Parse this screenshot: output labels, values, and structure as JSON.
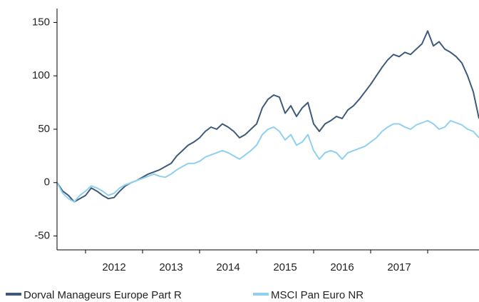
{
  "chart_data": {
    "type": "line",
    "x": [
      2011.5,
      2011.6,
      2011.7,
      2011.8,
      2011.9,
      2012.0,
      2012.1,
      2012.2,
      2012.3,
      2012.4,
      2012.5,
      2012.6,
      2012.7,
      2012.8,
      2012.9,
      2013.0,
      2013.1,
      2013.2,
      2013.3,
      2013.4,
      2013.5,
      2013.6,
      2013.7,
      2013.8,
      2013.9,
      2014.0,
      2014.1,
      2014.2,
      2014.3,
      2014.4,
      2014.5,
      2014.6,
      2014.7,
      2014.8,
      2014.9,
      2015.0,
      2015.1,
      2015.2,
      2015.3,
      2015.4,
      2015.5,
      2015.6,
      2015.7,
      2015.8,
      2015.9,
      2016.0,
      2016.1,
      2016.2,
      2016.3,
      2016.4,
      2016.5,
      2016.6,
      2016.7,
      2016.8,
      2016.9,
      2017.0,
      2017.1,
      2017.2,
      2017.3,
      2017.4,
      2017.5,
      2017.6,
      2017.7,
      2017.8,
      2017.9,
      2018.0,
      2018.1,
      2018.2,
      2018.3,
      2018.4,
      2018.5,
      2018.6,
      2018.7,
      2018.8,
      2018.9
    ],
    "series": [
      {
        "name": "Dorval Manageurs Europe Part R",
        "color": "#3d5a7a",
        "values": [
          0,
          -8,
          -12,
          -18,
          -15,
          -12,
          -5,
          -8,
          -12,
          -15,
          -14,
          -8,
          -3,
          0,
          2,
          5,
          8,
          10,
          12,
          15,
          18,
          25,
          30,
          35,
          38,
          42,
          48,
          52,
          50,
          55,
          52,
          48,
          42,
          45,
          50,
          55,
          70,
          78,
          82,
          80,
          65,
          72,
          62,
          70,
          75,
          55,
          48,
          55,
          58,
          62,
          60,
          68,
          72,
          78,
          85,
          92,
          100,
          108,
          115,
          120,
          118,
          122,
          120,
          125,
          130,
          142,
          128,
          132,
          125,
          122,
          118,
          112,
          100,
          85,
          60
        ]
      },
      {
        "name": "MSCI Pan Euro NR",
        "color": "#8fd0f0",
        "values": [
          0,
          -10,
          -15,
          -18,
          -12,
          -8,
          -3,
          -5,
          -8,
          -12,
          -10,
          -5,
          -2,
          0,
          2,
          4,
          6,
          8,
          6,
          5,
          8,
          12,
          15,
          18,
          18,
          20,
          24,
          26,
          28,
          30,
          28,
          25,
          22,
          26,
          30,
          35,
          45,
          50,
          52,
          48,
          40,
          45,
          35,
          38,
          45,
          30,
          22,
          28,
          30,
          28,
          22,
          28,
          30,
          32,
          34,
          38,
          42,
          48,
          52,
          55,
          55,
          52,
          50,
          54,
          56,
          58,
          55,
          50,
          52,
          58,
          56,
          54,
          50,
          48,
          42
        ]
      }
    ],
    "xlim": [
      2011.5,
      2018.9
    ],
    "xticks": [
      2012,
      2013,
      2014,
      2015,
      2016,
      2017,
      2018
    ],
    "xlabels": [
      {
        "value": 2012.5,
        "label": "2012"
      },
      {
        "value": 2013.5,
        "label": "2013"
      },
      {
        "value": 2014.5,
        "label": "2014"
      },
      {
        "value": 2015.5,
        "label": "2015"
      },
      {
        "value": 2016.5,
        "label": "2016"
      },
      {
        "value": 2017.5,
        "label": "2017"
      }
    ],
    "ylim": [
      -63,
      163
    ],
    "yticks": [
      -50,
      0,
      50,
      100,
      150
    ],
    "legend": "bottom"
  }
}
